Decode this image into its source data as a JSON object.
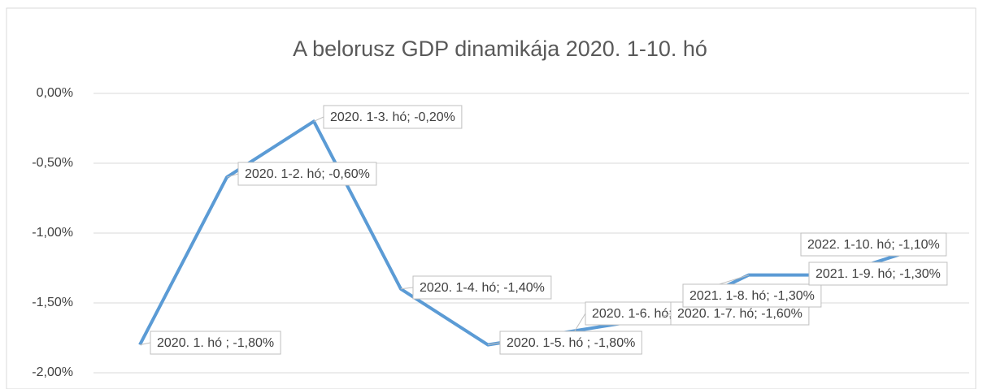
{
  "chart_data": {
    "type": "line",
    "title": "A belorusz GDP dinamikája 2020. 1-10. hó",
    "series": [
      {
        "color": "#5b9bd5",
        "values": [
          -1.8,
          -0.6,
          -0.2,
          -1.4,
          -1.8,
          -1.7,
          -1.6,
          -1.3,
          -1.3,
          -1.1
        ],
        "value_labels": [
          "2020. 1. hó ; -1,80%",
          "2020. 1-2. hó; -0,60%",
          "2020. 1-3. hó; -0,20%",
          "2020. 1-4. hó; -1,40%",
          "2020. 1-5. hó ; -1,80%",
          "2020. 1-6. hó; -1,70%",
          "2020. 1-7. hó; -1,60%",
          "2021. 1-8. hó; -1,30%",
          "2021. 1-9. hó; -1,30%",
          "2022. 1-10. hó; -1,10%"
        ]
      }
    ],
    "ylim": [
      -2,
      0
    ],
    "yticks": [
      {
        "value": -2,
        "label": "-2,00%"
      },
      {
        "value": -1.5,
        "label": "-1,50%"
      },
      {
        "value": -1,
        "label": "-1,00%"
      },
      {
        "value": -0.5,
        "label": "-0,50%"
      },
      {
        "value": 0,
        "label": "0,00%"
      }
    ],
    "grid": true
  }
}
